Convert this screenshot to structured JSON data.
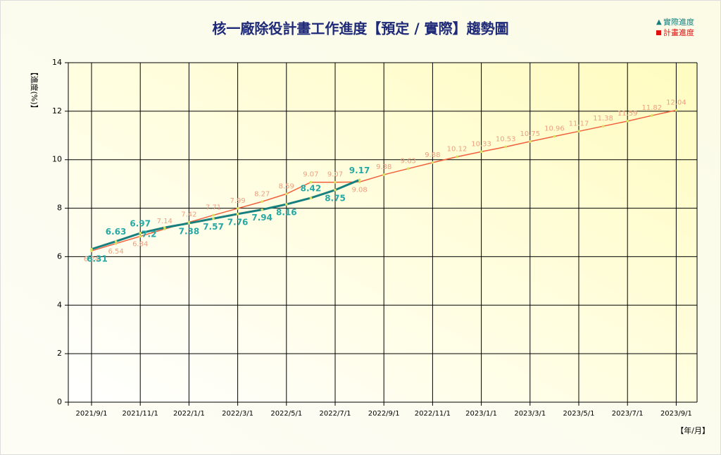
{
  "chart_data": {
    "type": "line",
    "title": "核一廠除役計畫工作進度【預定 / 實際】趨勢圖",
    "y_label": "【進度(%)】",
    "x_label": "【年/月】",
    "categories": [
      "2021/9/1",
      null,
      "2021/11/1",
      null,
      "2022/1/1",
      null,
      "2022/3/1",
      null,
      "2022/5/1",
      null,
      "2022/7/1",
      null,
      "2022/9/1",
      null,
      "2022/11/1",
      null,
      "2023/1/1",
      null,
      "2023/3/1",
      null,
      "2023/5/1",
      null,
      "2023/7/1",
      null,
      "2023/9/1"
    ],
    "series": [
      {
        "name": "實際進度",
        "color": "#17807e",
        "values": [
          6.31,
          6.63,
          6.97,
          7.2,
          7.38,
          7.57,
          7.76,
          7.94,
          8.16,
          8.42,
          8.75,
          9.17,
          null,
          null,
          null,
          null,
          null,
          null,
          null,
          null,
          null,
          null,
          null,
          null,
          null
        ]
      },
      {
        "name": "計畫進度",
        "color": "#f0603c",
        "values": [
          6.24,
          6.54,
          6.84,
          7.14,
          7.42,
          7.71,
          7.99,
          8.27,
          8.59,
          9.07,
          9.07,
          9.08,
          9.38,
          9.63,
          9.88,
          10.12,
          10.33,
          10.53,
          10.75,
          10.96,
          11.17,
          11.38,
          11.59,
          11.82,
          12.04
        ]
      }
    ],
    "ylim": [
      0,
      14
    ],
    "yticks": [
      0,
      2,
      4,
      6,
      8,
      10,
      12,
      14
    ],
    "grid": true
  }
}
